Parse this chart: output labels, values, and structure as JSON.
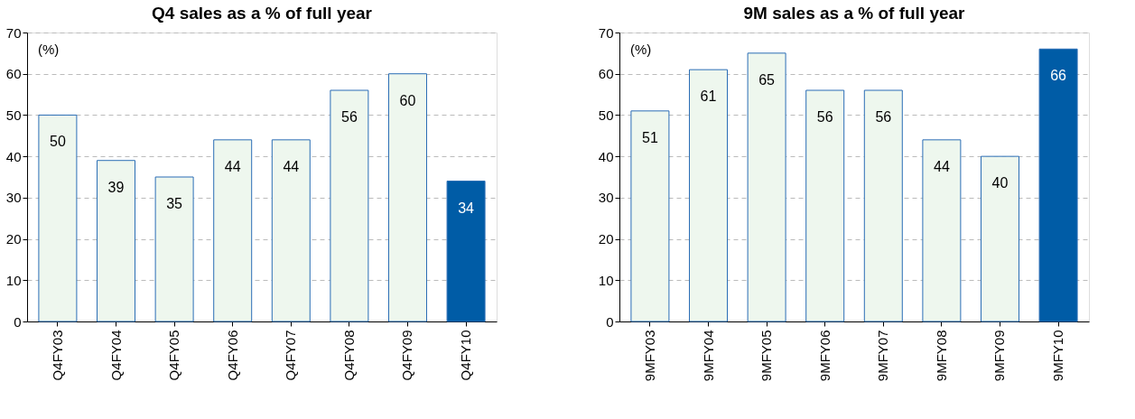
{
  "chart_data": [
    {
      "type": "bar",
      "title": "Q4 sales as a % of full year",
      "categories": [
        "Q4FY03",
        "Q4FY04",
        "Q4FY05",
        "Q4FY06",
        "Q4FY07",
        "Q4FY08",
        "Q4FY09",
        "Q4FY10"
      ],
      "values": [
        50,
        39,
        35,
        44,
        44,
        56,
        60,
        34
      ],
      "colors": [
        "#eef7ee",
        "#eef7ee",
        "#eef7ee",
        "#eef7ee",
        "#eef7ee",
        "#eef7ee",
        "#eef7ee",
        "#005ca6"
      ],
      "ylim": [
        0,
        70
      ],
      "yticks": [
        0,
        10,
        20,
        30,
        40,
        50,
        60,
        70
      ],
      "grid": "y",
      "data_labels": true,
      "annotations": [
        "(%)"
      ]
    },
    {
      "type": "bar",
      "title": "9M sales as a % of full year",
      "categories": [
        "9MFY03",
        "9MFY04",
        "9MFY05",
        "9MFY06",
        "9MFY07",
        "9MFY08",
        "9MFY09",
        "9MFY10"
      ],
      "values": [
        51,
        61,
        65,
        56,
        56,
        44,
        40,
        66
      ],
      "colors": [
        "#eef7ee",
        "#eef7ee",
        "#eef7ee",
        "#eef7ee",
        "#eef7ee",
        "#eef7ee",
        "#eef7ee",
        "#005ca6"
      ],
      "ylim": [
        0,
        70
      ],
      "yticks": [
        0,
        10,
        20,
        30,
        40,
        50,
        60,
        70
      ],
      "grid": "y",
      "data_labels": true,
      "annotations": [
        "(%)"
      ]
    }
  ]
}
